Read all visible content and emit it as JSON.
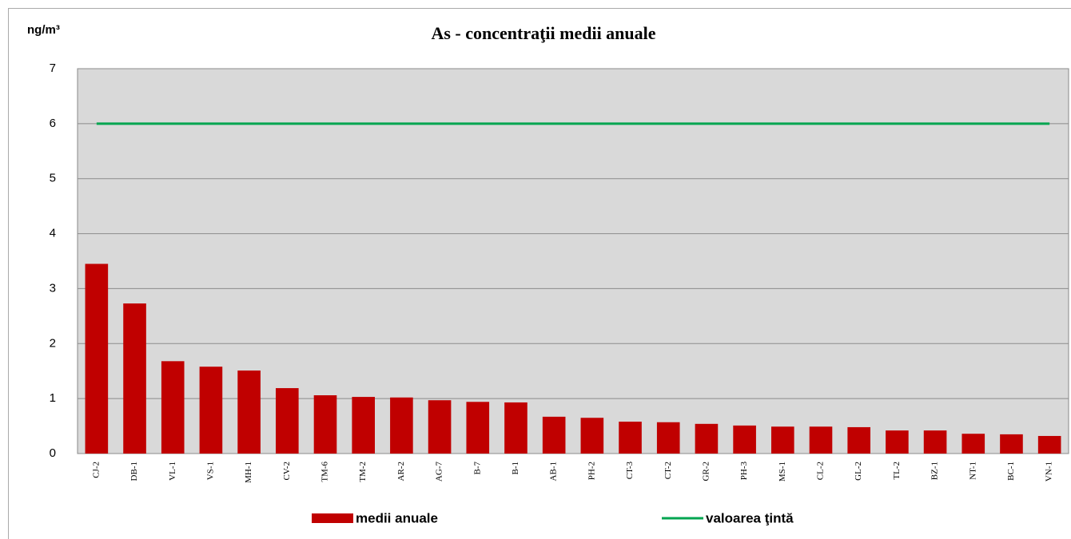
{
  "chart_data": {
    "type": "bar",
    "title": "As - concentraţii medii anuale",
    "y_label": "ng/m³",
    "categories": [
      "CJ-2",
      "DB-1",
      "VL-1",
      "VS-1",
      "MH-1",
      "CV-2",
      "TM-6",
      "TM-2",
      "AR-2",
      "AG-7",
      "B-7",
      "B-1",
      "AB-1",
      "PH-2",
      "CT-3",
      "CT-2",
      "GR-2",
      "PH-3",
      "MS-1",
      "CL-2",
      "GL-2",
      "TL-2",
      "BZ-1",
      "NT-1",
      "BC-1",
      "VN-1"
    ],
    "series": [
      {
        "name": "medii anuale",
        "type": "bar",
        "color": "#c00000",
        "values": [
          3.45,
          2.73,
          1.68,
          1.58,
          1.51,
          1.19,
          1.06,
          1.03,
          1.02,
          0.97,
          0.94,
          0.93,
          0.67,
          0.65,
          0.58,
          0.57,
          0.54,
          0.51,
          0.49,
          0.49,
          0.48,
          0.42,
          0.42,
          0.36,
          0.35,
          0.32
        ]
      },
      {
        "name": "valoarea ţintă",
        "type": "line",
        "color": "#00a550",
        "values": [
          6,
          6,
          6,
          6,
          6,
          6,
          6,
          6,
          6,
          6,
          6,
          6,
          6,
          6,
          6,
          6,
          6,
          6,
          6,
          6,
          6,
          6,
          6,
          6,
          6,
          6
        ]
      }
    ],
    "ylim": [
      0,
      7
    ],
    "yticks": [
      0,
      1,
      2,
      3,
      4,
      5,
      6,
      7
    ],
    "grid": true,
    "legend": "bottom"
  }
}
